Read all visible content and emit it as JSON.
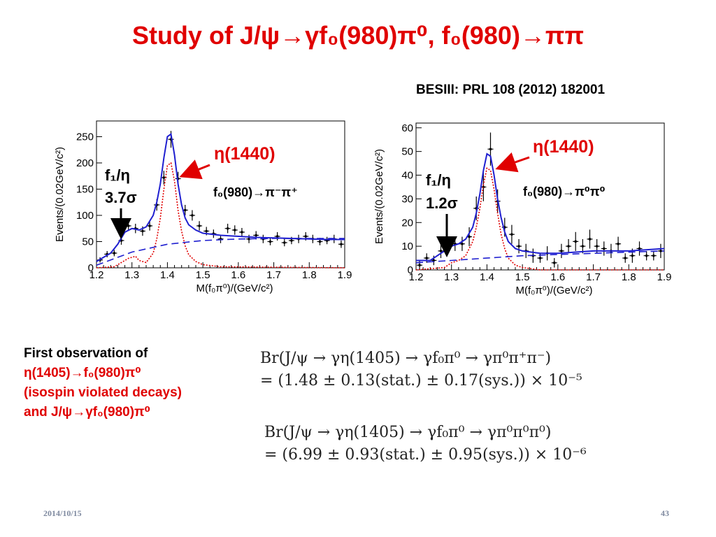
{
  "slide": {
    "title": "Study of J/ψ→γf₀(980)π⁰,  f₀(980)→ππ",
    "reference": "BESIII: PRL 108 (2012) 182001",
    "date": "2014/10/15",
    "page_number": "43"
  },
  "left_panel": {
    "eta_label": "η(1440)",
    "f1_label": "f₁/η",
    "significance": "3.7σ",
    "channel": "f₀(980)→π⁻π⁺"
  },
  "right_panel": {
    "eta_label": "η(1440)",
    "f1_label": "f₁/η",
    "significance": "1.2σ",
    "channel": "f₀(980)→π⁰π⁰"
  },
  "observation": {
    "line1": "First observation of",
    "line2": "η(1405)→f₀(980)π⁰",
    "line3": "(isospin violated decays)",
    "line4": "and J/ψ→γf₀(980)π⁰"
  },
  "formulas": {
    "f1_line1": "Br(J/ψ → γη(1405) → γf₀π⁰ → γπ⁰π⁺π⁻)",
    "f1_line2": "= (1.48 ± 0.13(stat.) ± 0.17(sys.)) × 10⁻⁵",
    "f2_line1": "Br(J/ψ → γη(1405) → γf₀π⁰ → γπ⁰π⁰π⁰)",
    "f2_line2": "= (6.99 ± 0.93(stat.) ± 0.95(sys.)) × 10⁻⁶"
  },
  "colors": {
    "fit": "#1f1fd0",
    "signal": "#e00000",
    "title": "#e00000",
    "data": "#000000"
  },
  "chart_data": [
    {
      "type": "scatter",
      "title": "",
      "xlabel": "M(f₀π⁰)/(GeV/c²)",
      "ylabel": "Events/(0.02GeV/c²)",
      "xlim": [
        1.2,
        1.9
      ],
      "ylim": [
        0,
        280
      ],
      "xticks": [
        "1.2",
        "1.3",
        "1.4",
        "1.5",
        "1.6",
        "1.7",
        "1.8",
        "1.9"
      ],
      "yticks": [
        "0",
        "50",
        "100",
        "150",
        "200",
        "250"
      ],
      "grid": false,
      "series": [
        {
          "style": "data-points",
          "x": [
            1.21,
            1.23,
            1.25,
            1.27,
            1.29,
            1.31,
            1.33,
            1.35,
            1.37,
            1.39,
            1.41,
            1.43,
            1.45,
            1.47,
            1.49,
            1.51,
            1.53,
            1.55,
            1.57,
            1.59,
            1.61,
            1.63,
            1.65,
            1.67,
            1.69,
            1.71,
            1.73,
            1.75,
            1.77,
            1.79,
            1.81,
            1.83,
            1.85,
            1.87,
            1.89
          ],
          "y": [
            15,
            26,
            28,
            52,
            80,
            75,
            70,
            80,
            120,
            172,
            245,
            170,
            110,
            100,
            80,
            70,
            65,
            55,
            75,
            72,
            68,
            55,
            62,
            55,
            50,
            60,
            48,
            52,
            55,
            60,
            55,
            50,
            52,
            55,
            45
          ],
          "err": [
            5,
            6,
            6,
            8,
            9,
            9,
            9,
            9,
            11,
            13,
            16,
            13,
            10,
            10,
            9,
            8,
            8,
            8,
            9,
            9,
            8,
            8,
            8,
            8,
            7,
            8,
            7,
            7,
            8,
            8,
            8,
            7,
            7,
            8,
            7
          ]
        },
        {
          "style": "total-fit",
          "x": [
            1.2,
            1.22,
            1.24,
            1.26,
            1.28,
            1.3,
            1.32,
            1.34,
            1.36,
            1.37,
            1.38,
            1.39,
            1.4,
            1.41,
            1.42,
            1.43,
            1.44,
            1.45,
            1.46,
            1.48,
            1.5,
            1.55,
            1.6,
            1.65,
            1.7,
            1.75,
            1.8,
            1.85,
            1.9
          ],
          "y": [
            12,
            20,
            28,
            45,
            68,
            75,
            72,
            78,
            100,
            125,
            160,
            210,
            250,
            255,
            215,
            160,
            120,
            95,
            82,
            72,
            66,
            62,
            60,
            58,
            57,
            56,
            55,
            54,
            54
          ]
        },
        {
          "style": "signal-dotted",
          "x": [
            1.2,
            1.25,
            1.27,
            1.29,
            1.31,
            1.32,
            1.34,
            1.36,
            1.37,
            1.38,
            1.39,
            1.4,
            1.41,
            1.42,
            1.43,
            1.44,
            1.45,
            1.46,
            1.48,
            1.5,
            1.55,
            1.9
          ],
          "y": [
            0,
            2,
            10,
            18,
            22,
            14,
            10,
            28,
            55,
            95,
            150,
            195,
            200,
            165,
            110,
            70,
            42,
            25,
            12,
            6,
            2,
            0
          ]
        },
        {
          "style": "background-dashed",
          "x": [
            1.2,
            1.3,
            1.4,
            1.5,
            1.6,
            1.7,
            1.8,
            1.9
          ],
          "y": [
            5,
            30,
            45,
            52,
            55,
            56,
            56,
            56
          ]
        }
      ]
    },
    {
      "type": "scatter",
      "title": "",
      "xlabel": "M(f₀π⁰)/(GeV/c²)",
      "ylabel": "Events/(0.02GeV/c²)",
      "xlim": [
        1.2,
        1.9
      ],
      "ylim": [
        0,
        62
      ],
      "xticks": [
        "1.2",
        "1.3",
        "1.4",
        "1.5",
        "1.6",
        "1.7",
        "1.8",
        "1.9"
      ],
      "yticks": [
        "0",
        "10",
        "20",
        "30",
        "40",
        "50",
        "60"
      ],
      "grid": false,
      "series": [
        {
          "style": "data-points",
          "x": [
            1.21,
            1.23,
            1.25,
            1.27,
            1.29,
            1.31,
            1.33,
            1.35,
            1.37,
            1.39,
            1.41,
            1.43,
            1.45,
            1.47,
            1.49,
            1.51,
            1.53,
            1.55,
            1.57,
            1.59,
            1.61,
            1.63,
            1.65,
            1.67,
            1.69,
            1.71,
            1.73,
            1.75,
            1.77,
            1.79,
            1.81,
            1.83,
            1.85,
            1.87,
            1.89
          ],
          "y": [
            2,
            5,
            4,
            8,
            10,
            11,
            11,
            14,
            26,
            35,
            51,
            29,
            18,
            15,
            10,
            8,
            6,
            5,
            7,
            3,
            8,
            10,
            12,
            10,
            13,
            10,
            9,
            8,
            11,
            5,
            6,
            9,
            6,
            6,
            8
          ],
          "err": [
            2,
            2,
            2,
            3,
            3,
            3,
            3,
            4,
            5,
            6,
            7,
            5,
            4,
            4,
            3,
            3,
            3,
            2,
            3,
            2,
            3,
            3,
            4,
            3,
            4,
            3,
            3,
            3,
            3,
            2,
            3,
            3,
            2,
            2,
            3
          ]
        },
        {
          "style": "total-fit",
          "x": [
            1.2,
            1.24,
            1.26,
            1.28,
            1.3,
            1.32,
            1.34,
            1.36,
            1.37,
            1.38,
            1.39,
            1.4,
            1.41,
            1.42,
            1.43,
            1.44,
            1.45,
            1.46,
            1.48,
            1.5,
            1.55,
            1.6,
            1.7,
            1.8,
            1.9
          ],
          "y": [
            4,
            4,
            6,
            8,
            10,
            11,
            13,
            18,
            24,
            32,
            42,
            49,
            48,
            40,
            30,
            22,
            16,
            12,
            9,
            8,
            7,
            7,
            8,
            8,
            9
          ]
        },
        {
          "style": "signal-dotted",
          "x": [
            1.2,
            1.28,
            1.3,
            1.32,
            1.34,
            1.36,
            1.37,
            1.38,
            1.39,
            1.4,
            1.41,
            1.42,
            1.43,
            1.44,
            1.45,
            1.46,
            1.48,
            1.5,
            1.55,
            1.9
          ],
          "y": [
            0,
            1,
            3,
            4,
            6,
            12,
            18,
            26,
            36,
            43,
            42,
            34,
            24,
            15,
            9,
            5,
            2,
            1,
            0,
            0
          ]
        },
        {
          "style": "background-dashed",
          "x": [
            1.2,
            1.3,
            1.4,
            1.5,
            1.6,
            1.7,
            1.8,
            1.9
          ],
          "y": [
            3,
            4,
            5,
            6,
            6.5,
            7,
            7.5,
            8
          ]
        }
      ]
    }
  ]
}
